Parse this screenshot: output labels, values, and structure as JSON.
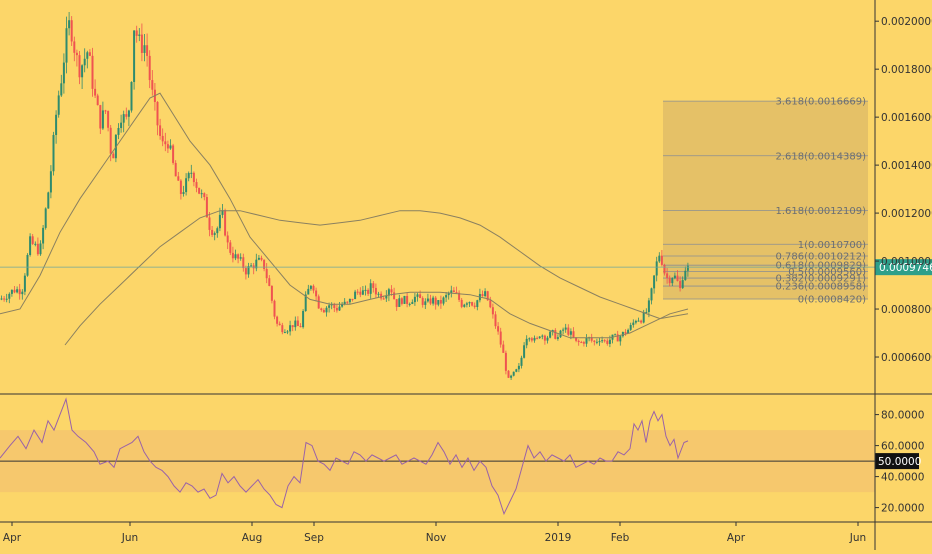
{
  "theme": {
    "background": "#fcd669",
    "up_color": "#2e8b6e",
    "down_color": "#ef5350",
    "ma_color": "#8a8060",
    "rsi_color": "#9a62a8",
    "fib_color": "#8a8e92",
    "band_color": "#f4c66e",
    "price_line_color": "#6fa59a",
    "price_label_bg": "#2e9f8a",
    "axis_text_color": "#333333"
  },
  "chart_data": [
    {
      "type": "candlestick",
      "x_ticks": [
        "Apr",
        "Jun",
        "Aug",
        "Sep",
        "Nov",
        "2019",
        "Feb",
        "Apr",
        "Jun"
      ],
      "y_ticks": [
        "0.0006000",
        "0.0008000",
        "0.0010000",
        "0.0012000",
        "0.0014000",
        "0.0016000",
        "0.0018000",
        "0.0020000"
      ],
      "ylim": [
        0.00045,
        0.00208
      ],
      "last_price": 0.0009746,
      "last_price_label": "0.0009746",
      "close_path": [
        [
          0,
          0.00084
        ],
        [
          14,
          0.00088
        ],
        [
          22,
          0.00088
        ],
        [
          30,
          0.00108
        ],
        [
          40,
          0.00104
        ],
        [
          50,
          0.00134
        ],
        [
          57,
          0.00165
        ],
        [
          62,
          0.00178
        ],
        [
          66,
          0.00192
        ],
        [
          70,
          0.002
        ],
        [
          76,
          0.00185
        ],
        [
          80,
          0.0018
        ],
        [
          88,
          0.00188
        ],
        [
          94,
          0.0017
        ],
        [
          100,
          0.00158
        ],
        [
          106,
          0.00163
        ],
        [
          112,
          0.00142
        ],
        [
          116,
          0.00152
        ],
        [
          120,
          0.00162
        ],
        [
          126,
          0.00158
        ],
        [
          130,
          0.00166
        ],
        [
          134,
          0.00198
        ],
        [
          140,
          0.0019
        ],
        [
          146,
          0.0019
        ],
        [
          150,
          0.00175
        ],
        [
          156,
          0.0016
        ],
        [
          162,
          0.00148
        ],
        [
          168,
          0.0015
        ],
        [
          174,
          0.00138
        ],
        [
          180,
          0.00128
        ],
        [
          186,
          0.00132
        ],
        [
          192,
          0.00138
        ],
        [
          198,
          0.0013
        ],
        [
          204,
          0.00125
        ],
        [
          210,
          0.00114
        ],
        [
          216,
          0.00112
        ],
        [
          222,
          0.0012
        ],
        [
          228,
          0.00106
        ],
        [
          234,
          0.00102
        ],
        [
          240,
          0.001
        ],
        [
          246,
          0.00096
        ],
        [
          252,
          0.00098
        ],
        [
          258,
          0.001
        ],
        [
          264,
          0.00098
        ],
        [
          270,
          0.00088
        ],
        [
          276,
          0.00074
        ],
        [
          282,
          0.00072
        ],
        [
          288,
          0.00072
        ],
        [
          294,
          0.00074
        ],
        [
          300,
          0.00072
        ],
        [
          306,
          0.00085
        ],
        [
          312,
          0.00092
        ],
        [
          318,
          0.00082
        ],
        [
          324,
          0.0008
        ],
        [
          330,
          0.00082
        ],
        [
          336,
          0.0008
        ],
        [
          342,
          0.00082
        ],
        [
          348,
          0.00082
        ],
        [
          354,
          0.00086
        ],
        [
          360,
          0.00088
        ],
        [
          366,
          0.00086
        ],
        [
          372,
          0.0009
        ],
        [
          378,
          0.00086
        ],
        [
          384,
          0.00086
        ],
        [
          390,
          0.0009
        ],
        [
          396,
          0.00082
        ],
        [
          402,
          0.00084
        ],
        [
          408,
          0.00083
        ],
        [
          414,
          0.00085
        ],
        [
          420,
          0.00084
        ],
        [
          426,
          0.00082
        ],
        [
          432,
          0.00084
        ],
        [
          438,
          0.00082
        ],
        [
          444,
          0.00084
        ],
        [
          450,
          0.00087
        ],
        [
          456,
          0.00086
        ],
        [
          462,
          0.00082
        ],
        [
          468,
          0.00084
        ],
        [
          474,
          0.00082
        ],
        [
          480,
          0.00085
        ],
        [
          486,
          0.00086
        ],
        [
          492,
          0.00078
        ],
        [
          498,
          0.0007
        ],
        [
          504,
          0.0006
        ],
        [
          508,
          0.0005
        ],
        [
          512,
          0.00052
        ],
        [
          516,
          0.00054
        ],
        [
          520,
          0.00056
        ],
        [
          524,
          0.00066
        ],
        [
          528,
          0.0007
        ],
        [
          532,
          0.00068
        ],
        [
          536,
          0.00066
        ],
        [
          540,
          0.0007
        ],
        [
          546,
          0.00068
        ],
        [
          552,
          0.0007
        ],
        [
          558,
          0.00068
        ],
        [
          564,
          0.00072
        ],
        [
          570,
          0.0007
        ],
        [
          576,
          0.00066
        ],
        [
          582,
          0.00066
        ],
        [
          588,
          0.00068
        ],
        [
          594,
          0.00066
        ],
        [
          600,
          0.00068
        ],
        [
          606,
          0.00066
        ],
        [
          612,
          0.00068
        ],
        [
          618,
          0.00068
        ],
        [
          624,
          0.0007
        ],
        [
          630,
          0.00072
        ],
        [
          636,
          0.00076
        ],
        [
          642,
          0.00076
        ],
        [
          648,
          0.0008
        ],
        [
          652,
          0.00088
        ],
        [
          656,
          0.00098
        ],
        [
          660,
          0.00104
        ],
        [
          664,
          0.00096
        ],
        [
          668,
          0.00092
        ],
        [
          672,
          0.00094
        ],
        [
          676,
          0.00093
        ],
        [
          680,
          0.00088
        ],
        [
          684,
          0.00097
        ],
        [
          688,
          0.00097
        ]
      ],
      "moving_averages": [
        {
          "points": [
            [
              0,
              0.00078
            ],
            [
              20,
              0.0008
            ],
            [
              40,
              0.00094
            ],
            [
              60,
              0.00112
            ],
            [
              80,
              0.00126
            ],
            [
              100,
              0.00138
            ],
            [
              120,
              0.0015
            ],
            [
              140,
              0.00162
            ],
            [
              150,
              0.00168
            ],
            [
              160,
              0.0017
            ],
            [
              175,
              0.0016
            ],
            [
              190,
              0.0015
            ],
            [
              210,
              0.0014
            ],
            [
              230,
              0.00126
            ],
            [
              250,
              0.0011
            ],
            [
              270,
              0.001
            ],
            [
              290,
              0.0009
            ],
            [
              310,
              0.00084
            ],
            [
              330,
              0.00082
            ],
            [
              350,
              0.00082
            ],
            [
              370,
              0.00084
            ],
            [
              390,
              0.00086
            ],
            [
              410,
              0.00087
            ],
            [
              440,
              0.00087
            ],
            [
              470,
              0.00086
            ],
            [
              490,
              0.00084
            ],
            [
              510,
              0.00078
            ],
            [
              530,
              0.00074
            ],
            [
              550,
              0.00071
            ],
            [
              570,
              0.00068
            ],
            [
              590,
              0.00068
            ],
            [
              610,
              0.00068
            ],
            [
              630,
              0.0007
            ],
            [
              650,
              0.00074
            ],
            [
              670,
              0.00078
            ],
            [
              688,
              0.0008
            ]
          ]
        },
        {
          "points": [
            [
              65,
              0.00065
            ],
            [
              80,
              0.00073
            ],
            [
              100,
              0.00082
            ],
            [
              120,
              0.0009
            ],
            [
              140,
              0.00098
            ],
            [
              160,
              0.00106
            ],
            [
              180,
              0.00112
            ],
            [
              200,
              0.00118
            ],
            [
              220,
              0.00121
            ],
            [
              240,
              0.00121
            ],
            [
              260,
              0.00119
            ],
            [
              280,
              0.00117
            ],
            [
              300,
              0.00116
            ],
            [
              320,
              0.00115
            ],
            [
              340,
              0.00116
            ],
            [
              360,
              0.00117
            ],
            [
              380,
              0.00119
            ],
            [
              400,
              0.00121
            ],
            [
              420,
              0.00121
            ],
            [
              440,
              0.0012
            ],
            [
              460,
              0.00118
            ],
            [
              480,
              0.00115
            ],
            [
              500,
              0.0011
            ],
            [
              520,
              0.00104
            ],
            [
              540,
              0.00098
            ],
            [
              560,
              0.00093
            ],
            [
              580,
              0.00089
            ],
            [
              600,
              0.00085
            ],
            [
              620,
              0.00082
            ],
            [
              640,
              0.00079
            ],
            [
              660,
              0.00076
            ],
            [
              688,
              0.00078
            ]
          ]
        }
      ]
    },
    {
      "type": "fib_retracement",
      "levels": [
        {
          "ratio": 3.618,
          "value": 0.0016669,
          "label": "3.618(0.0016669)"
        },
        {
          "ratio": 2.618,
          "value": 0.0014389,
          "label": "2.618(0.0014389)"
        },
        {
          "ratio": 1.618,
          "value": 0.0012109,
          "label": "1.618(0.0012109)"
        },
        {
          "ratio": 1,
          "value": 0.00107,
          "label": "1(0.0010700)"
        },
        {
          "ratio": 0.786,
          "value": 0.0010212,
          "label": "0.786(0.0010212)"
        },
        {
          "ratio": 0.618,
          "value": 0.0009829,
          "label": "0.618(0.0009829)"
        },
        {
          "ratio": 0.5,
          "value": 0.000956,
          "label": "0.5(0.0009560)"
        },
        {
          "ratio": 0.382,
          "value": 0.0009291,
          "label": "0.382(0.0009291)"
        },
        {
          "ratio": 0.236,
          "value": 0.0008958,
          "label": "0.236(0.0008958)"
        },
        {
          "ratio": 0,
          "value": 0.000842,
          "label": "0(0.0008420)"
        }
      ]
    },
    {
      "type": "line",
      "y_ticks": [
        "20.0000",
        "40.0000",
        "60.0000",
        "80.0000"
      ],
      "ylim": [
        12,
        92
      ],
      "band": [
        30,
        70
      ],
      "midline": 50,
      "midline_label": "50.0000",
      "rsi_path": [
        [
          0,
          52
        ],
        [
          10,
          60
        ],
        [
          18,
          66
        ],
        [
          26,
          58
        ],
        [
          34,
          70
        ],
        [
          42,
          62
        ],
        [
          48,
          76
        ],
        [
          54,
          70
        ],
        [
          60,
          80
        ],
        [
          66,
          90
        ],
        [
          72,
          70
        ],
        [
          78,
          66
        ],
        [
          86,
          62
        ],
        [
          94,
          56
        ],
        [
          100,
          48
        ],
        [
          108,
          50
        ],
        [
          114,
          46
        ],
        [
          120,
          58
        ],
        [
          126,
          60
        ],
        [
          132,
          62
        ],
        [
          138,
          66
        ],
        [
          144,
          56
        ],
        [
          150,
          50
        ],
        [
          156,
          46
        ],
        [
          162,
          44
        ],
        [
          168,
          40
        ],
        [
          174,
          34
        ],
        [
          180,
          30
        ],
        [
          186,
          36
        ],
        [
          192,
          34
        ],
        [
          198,
          30
        ],
        [
          204,
          32
        ],
        [
          210,
          26
        ],
        [
          216,
          28
        ],
        [
          222,
          42
        ],
        [
          228,
          36
        ],
        [
          234,
          40
        ],
        [
          240,
          34
        ],
        [
          246,
          30
        ],
        [
          252,
          34
        ],
        [
          258,
          38
        ],
        [
          264,
          32
        ],
        [
          270,
          28
        ],
        [
          276,
          22
        ],
        [
          282,
          20
        ],
        [
          288,
          34
        ],
        [
          294,
          40
        ],
        [
          300,
          36
        ],
        [
          306,
          62
        ],
        [
          312,
          60
        ],
        [
          318,
          50
        ],
        [
          324,
          48
        ],
        [
          330,
          44
        ],
        [
          336,
          52
        ],
        [
          342,
          50
        ],
        [
          348,
          48
        ],
        [
          354,
          56
        ],
        [
          360,
          54
        ],
        [
          366,
          50
        ],
        [
          372,
          54
        ],
        [
          378,
          52
        ],
        [
          384,
          50
        ],
        [
          390,
          52
        ],
        [
          396,
          54
        ],
        [
          402,
          48
        ],
        [
          408,
          50
        ],
        [
          414,
          52
        ],
        [
          420,
          50
        ],
        [
          426,
          48
        ],
        [
          432,
          54
        ],
        [
          438,
          62
        ],
        [
          444,
          56
        ],
        [
          450,
          48
        ],
        [
          456,
          54
        ],
        [
          462,
          46
        ],
        [
          468,
          52
        ],
        [
          474,
          44
        ],
        [
          480,
          50
        ],
        [
          486,
          46
        ],
        [
          492,
          34
        ],
        [
          498,
          28
        ],
        [
          504,
          16
        ],
        [
          510,
          24
        ],
        [
          516,
          32
        ],
        [
          522,
          46
        ],
        [
          528,
          60
        ],
        [
          534,
          52
        ],
        [
          540,
          56
        ],
        [
          546,
          50
        ],
        [
          552,
          54
        ],
        [
          558,
          52
        ],
        [
          564,
          50
        ],
        [
          570,
          54
        ],
        [
          576,
          46
        ],
        [
          582,
          48
        ],
        [
          588,
          50
        ],
        [
          594,
          48
        ],
        [
          600,
          52
        ],
        [
          606,
          50
        ],
        [
          612,
          50
        ],
        [
          618,
          56
        ],
        [
          624,
          54
        ],
        [
          630,
          58
        ],
        [
          634,
          74
        ],
        [
          638,
          70
        ],
        [
          642,
          76
        ],
        [
          646,
          62
        ],
        [
          650,
          76
        ],
        [
          654,
          82
        ],
        [
          658,
          76
        ],
        [
          662,
          80
        ],
        [
          666,
          66
        ],
        [
          670,
          60
        ],
        [
          674,
          64
        ],
        [
          678,
          52
        ],
        [
          684,
          62
        ],
        [
          688,
          63
        ]
      ]
    }
  ]
}
